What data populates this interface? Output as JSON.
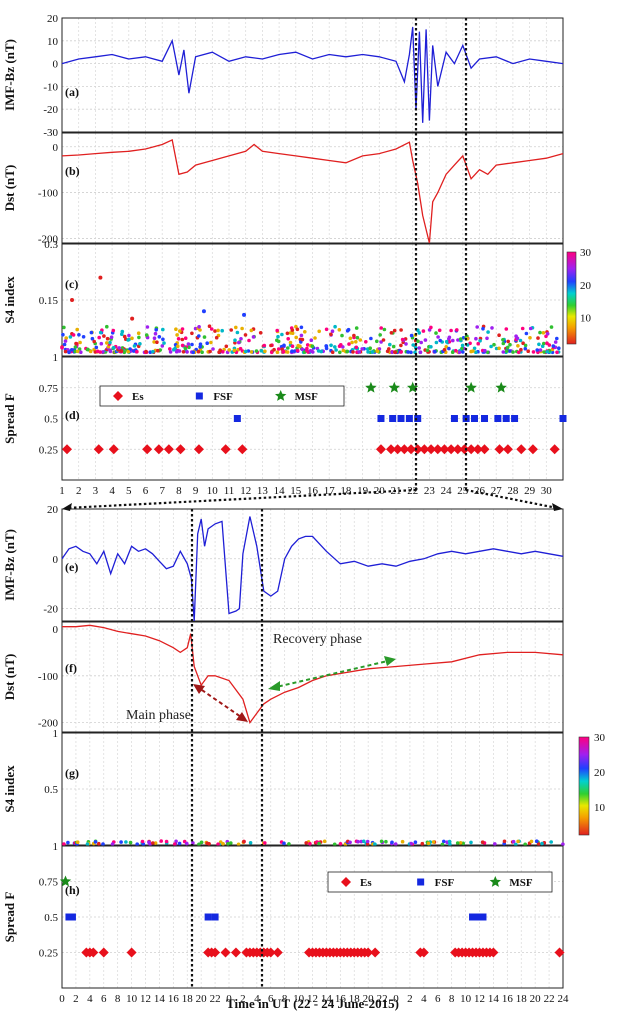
{
  "chart_data": [
    {
      "type": "line",
      "panel": "(a)",
      "ylabel": "IMF-Bz (nT)",
      "ylim": [
        -30,
        20
      ],
      "yticks": [
        -30,
        -20,
        -10,
        0,
        10,
        20
      ],
      "color": "#1f1fd6",
      "x": [
        1,
        2,
        3,
        4,
        5,
        6,
        7,
        7.6,
        8,
        8.3,
        8.6,
        9,
        10,
        11,
        12,
        13,
        14,
        15,
        16,
        17,
        18,
        19,
        20,
        21,
        21.5,
        21.8,
        22,
        22.2,
        22.4,
        22.6,
        22.8,
        23,
        23.2,
        23.5,
        24,
        24.5,
        25,
        25.5,
        26,
        27,
        28,
        29,
        30,
        31
      ],
      "y": [
        0,
        2,
        3,
        4,
        2,
        3,
        1,
        10,
        -5,
        6,
        -13,
        3,
        5,
        1,
        3,
        2,
        4,
        5,
        2,
        4,
        3,
        4,
        3,
        1,
        -8,
        4,
        16,
        -20,
        14,
        -26,
        15,
        -25,
        8,
        -10,
        5,
        0,
        8,
        -2,
        2,
        3,
        0,
        2,
        1,
        0
      ]
    },
    {
      "type": "line",
      "panel": "(b)",
      "ylabel": "Dst (nT)",
      "ylim": [
        -210,
        30
      ],
      "yticks": [
        -200,
        -100,
        0
      ],
      "color": "#e02020",
      "x": [
        1,
        2,
        3,
        4,
        5,
        6,
        7,
        7.6,
        8,
        8.5,
        9,
        10,
        11,
        12,
        12.5,
        13,
        14,
        15,
        16,
        17,
        18,
        19,
        20,
        21,
        21.8,
        22,
        22.3,
        22.6,
        23,
        23.2,
        23.5,
        24,
        24.5,
        25,
        25.5,
        26,
        26.5,
        27,
        28,
        29,
        30,
        31
      ],
      "y": [
        -20,
        -18,
        -15,
        -12,
        -10,
        -5,
        5,
        15,
        -60,
        -55,
        -40,
        -30,
        -20,
        -10,
        5,
        -10,
        -15,
        -20,
        -25,
        -30,
        -35,
        -20,
        -15,
        -5,
        10,
        -30,
        -80,
        -150,
        -210,
        -120,
        -100,
        -60,
        -40,
        -20,
        -70,
        -50,
        -60,
        -40,
        -35,
        -30,
        -25,
        -15
      ]
    },
    {
      "type": "scatter",
      "panel": "(c)",
      "ylabel": "S4 index",
      "ylim": [
        0,
        0.3
      ],
      "yticks": [
        0.15,
        0.3
      ],
      "colorbar_ticks": [
        10,
        20,
        30
      ],
      "x": [
        3.3,
        11.9,
        1.6,
        9.5,
        5.2
      ],
      "y": [
        0.21,
        0.11,
        0.15,
        0.12,
        0.1
      ]
    },
    {
      "type": "scatter",
      "panel": "(d)",
      "ylabel": "Spread F",
      "ylim": [
        0,
        1
      ],
      "yticks": [
        0.25,
        0.5,
        0.75,
        1
      ],
      "xticks": [
        1,
        2,
        3,
        4,
        5,
        6,
        7,
        8,
        9,
        10,
        11,
        12,
        13,
        14,
        15,
        16,
        17,
        18,
        19,
        20,
        21,
        22,
        23,
        24,
        25,
        26,
        27,
        28,
        29,
        30
      ],
      "legend": [
        "Es",
        "FSF",
        "MSF"
      ],
      "series": [
        {
          "name": "Es",
          "x": [
            1.3,
            3.2,
            4.1,
            6.1,
            6.8,
            7.4,
            8.1,
            9.2,
            10.8,
            11.8,
            20.1,
            20.7,
            21.1,
            21.5,
            21.9,
            22.3,
            22.7,
            23.1,
            23.5,
            23.9,
            24.3,
            24.7,
            25.1,
            25.5,
            25.9,
            26.3,
            27.2,
            27.7,
            28.5,
            29.2,
            30.5
          ],
          "y": [
            0.25,
            0.25,
            0.25,
            0.25,
            0.25,
            0.25,
            0.25,
            0.25,
            0.25,
            0.25,
            0.25,
            0.25,
            0.25,
            0.25,
            0.25,
            0.25,
            0.25,
            0.25,
            0.25,
            0.25,
            0.25,
            0.25,
            0.25,
            0.25,
            0.25,
            0.25,
            0.25,
            0.25,
            0.25,
            0.25,
            0.25
          ]
        },
        {
          "name": "FSF",
          "x": [
            11.5,
            20.1,
            20.8,
            21.3,
            21.8,
            22.3,
            24.5,
            25.2,
            25.7,
            26.3,
            27.1,
            27.6,
            28.1,
            31
          ],
          "y": [
            0.5,
            0.5,
            0.5,
            0.5,
            0.5,
            0.5,
            0.5,
            0.5,
            0.5,
            0.5,
            0.5,
            0.5,
            0.5,
            0.5
          ]
        },
        {
          "name": "MSF",
          "x": [
            19.5,
            20.9,
            22.0,
            25.5,
            27.3
          ],
          "y": [
            0.75,
            0.75,
            0.75,
            0.75,
            0.75
          ]
        }
      ]
    },
    {
      "type": "line",
      "panel": "(e)",
      "ylabel": "IMF-Bz (nT)",
      "ylim": [
        -25,
        20
      ],
      "yticks": [
        -20,
        0,
        20
      ],
      "color": "#1f1fd6",
      "x": [
        0,
        1,
        2,
        3,
        4,
        5,
        6,
        7,
        8,
        9,
        10,
        11,
        12,
        13,
        14,
        15,
        16,
        17,
        18,
        18.6,
        19,
        19.5,
        20,
        20.5,
        21,
        22,
        23,
        24,
        25,
        25.5,
        26,
        27,
        28,
        29,
        30,
        31,
        32,
        33,
        34,
        35,
        36,
        38,
        40,
        42,
        44,
        46,
        48,
        50,
        52,
        54,
        56,
        58,
        60,
        62,
        64,
        66,
        68,
        70,
        72
      ],
      "y": [
        0,
        4,
        5,
        3,
        2,
        -2,
        3,
        -6,
        2,
        -2,
        5,
        3,
        4,
        2,
        -1,
        -4,
        -3,
        3,
        -2,
        -8,
        -25,
        10,
        16,
        5,
        12,
        14,
        15,
        -22,
        -21,
        -20,
        2,
        17,
        5,
        -13,
        -15,
        -13,
        0,
        5,
        8,
        9,
        9,
        3,
        -2,
        -1,
        -3,
        -2,
        -3,
        -1,
        0,
        2,
        3,
        2,
        3,
        4,
        3,
        2,
        3,
        2,
        1
      ]
    },
    {
      "type": "line",
      "panel": "(f)",
      "ylabel": "Dst (nT)",
      "ylim": [
        -220,
        15
      ],
      "yticks": [
        -200,
        -100,
        0
      ],
      "color": "#e02020",
      "x": [
        0,
        2,
        4,
        6,
        8,
        10,
        12,
        14,
        16,
        17,
        18,
        18.5,
        19,
        20,
        21,
        22,
        24,
        26,
        27,
        28,
        29,
        30,
        32,
        34,
        36,
        38,
        40,
        44,
        48,
        52,
        56,
        60,
        64,
        68,
        72
      ],
      "y": [
        5,
        5,
        8,
        3,
        -5,
        -10,
        -15,
        -25,
        -40,
        -50,
        -40,
        -10,
        -80,
        -120,
        -100,
        -100,
        -110,
        -150,
        -200,
        -180,
        -160,
        -150,
        -135,
        -125,
        -110,
        -100,
        -95,
        -85,
        -80,
        -75,
        -70,
        -55,
        -50,
        -50,
        -55
      ]
    },
    {
      "type": "scatter",
      "panel": "(g)",
      "ylabel": "S4 index",
      "ylim": [
        0,
        1
      ],
      "yticks": [
        0.5,
        1
      ],
      "colorbar_ticks": [
        10,
        20,
        30
      ]
    },
    {
      "type": "scatter",
      "panel": "(h)",
      "ylabel": "Spread F",
      "xlabel": "Time in UT (22 - 24 June-2015)",
      "ylim": [
        0,
        1
      ],
      "yticks": [
        0.25,
        0.5,
        0.75,
        1
      ],
      "xtick_labels": [
        "0",
        "2",
        "4",
        "6",
        "8",
        "10",
        "12",
        "14",
        "16",
        "18",
        "20",
        "22",
        "0",
        "2",
        "4",
        "6",
        "8",
        "10",
        "12",
        "14",
        "16",
        "18",
        "20",
        "22",
        "0",
        "2",
        "4",
        "6",
        "8",
        "10",
        "12",
        "14",
        "16",
        "18",
        "20",
        "22",
        "24"
      ],
      "legend": [
        "Es",
        "FSF",
        "MSF"
      ],
      "series": [
        {
          "name": "Es",
          "x": [
            3.5,
            4,
            4.5,
            6,
            10,
            21,
            21.5,
            22,
            23.5,
            25,
            26.5,
            27,
            27.5,
            28,
            28.5,
            29,
            29.5,
            30,
            31,
            35.5,
            36,
            36.5,
            37,
            37.5,
            38,
            38.5,
            39,
            39.5,
            40,
            40.5,
            41,
            41.5,
            42,
            42.5,
            43,
            43.5,
            44,
            45,
            51.5,
            52,
            56.5,
            57,
            57.5,
            58,
            58.5,
            59,
            59.5,
            60,
            60.5,
            61,
            61.5,
            62,
            71.5
          ],
          "y": [
            0.25,
            0.25,
            0.25,
            0.25,
            0.25,
            0.25,
            0.25,
            0.25,
            0.25,
            0.25,
            0.25,
            0.25,
            0.25,
            0.25,
            0.25,
            0.25,
            0.25,
            0.25,
            0.25,
            0.25,
            0.25,
            0.25,
            0.25,
            0.25,
            0.25,
            0.25,
            0.25,
            0.25,
            0.25,
            0.25,
            0.25,
            0.25,
            0.25,
            0.25,
            0.25,
            0.25,
            0.25,
            0.25,
            0.25,
            0.25,
            0.25,
            0.25,
            0.25,
            0.25,
            0.25,
            0.25,
            0.25,
            0.25,
            0.25,
            0.25,
            0.25,
            0.25,
            0.25
          ]
        },
        {
          "name": "FSF",
          "x": [
            1,
            1.5,
            21,
            22,
            59,
            59.5,
            60.5
          ],
          "y": [
            0.5,
            0.5,
            0.5,
            0.5,
            0.5,
            0.5,
            0.5
          ]
        },
        {
          "name": "MSF",
          "x": [
            0.5
          ],
          "y": [
            0.75
          ]
        }
      ]
    }
  ],
  "annotations": {
    "recovery": "Recovery phase",
    "main": "Main phase"
  },
  "colors": {
    "es": "#e8101c",
    "fsf": "#1428e0",
    "msf": "#1a8a1a"
  }
}
